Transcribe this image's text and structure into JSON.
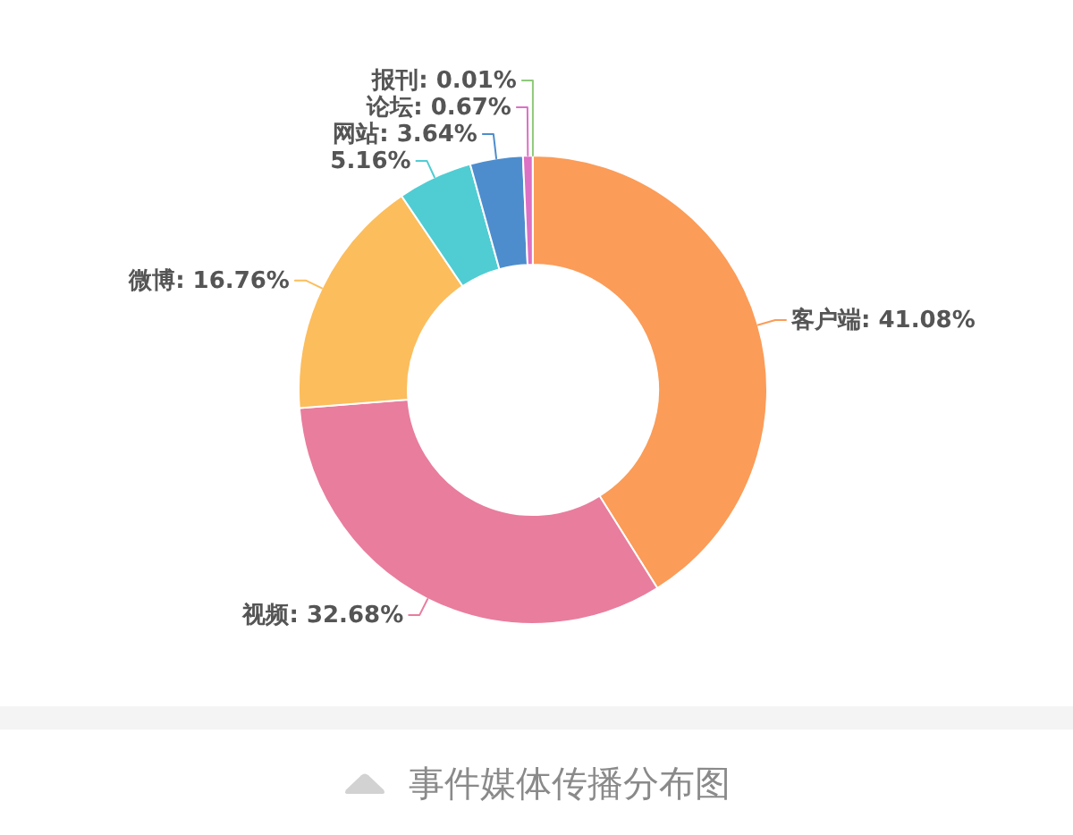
{
  "chart_data": {
    "type": "donut",
    "title": "事件媒体传播分布图",
    "categories": [
      "客户端",
      "视频",
      "微博",
      null,
      "网站",
      "论坛",
      "报刊"
    ],
    "values": [
      41.08,
      32.68,
      16.76,
      5.16,
      3.64,
      0.67,
      0.01
    ],
    "colors": [
      "#fb9c58",
      "#e97d9e",
      "#fcbd5c",
      "#4fcdd3",
      "#4d8dcd",
      "#dc70c4",
      "#8fc97a"
    ],
    "value_labels": [
      "41.08%",
      "32.68%",
      "16.76%",
      "5.16%",
      "3.64%",
      "0.67%",
      "0.01%"
    ]
  }
}
